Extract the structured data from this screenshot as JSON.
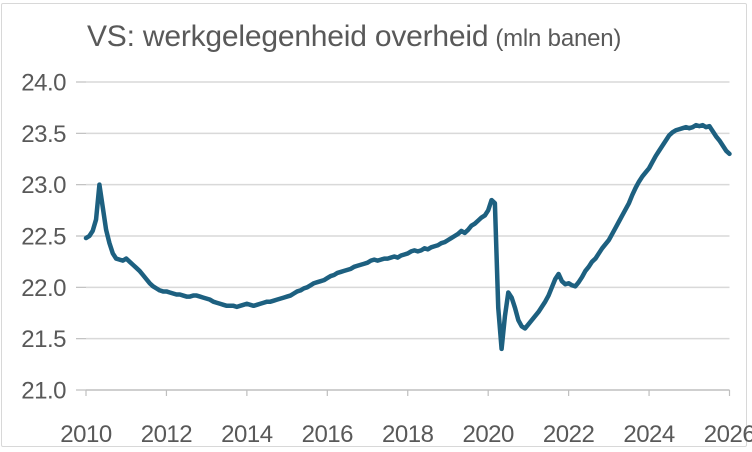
{
  "page": {
    "background": "#ffffff",
    "card_border_color": "#d8d8d8"
  },
  "chart_data": {
    "type": "line",
    "title": "VS: werkgelegenheid overheid",
    "subtitle": "(mln banen)",
    "xlabel": "",
    "ylabel": "",
    "xlim": [
      2010,
      2026
    ],
    "ylim": [
      21.0,
      24.0
    ],
    "x_ticks": [
      2010,
      2012,
      2014,
      2016,
      2018,
      2020,
      2022,
      2024,
      2026
    ],
    "y_ticks": [
      21.0,
      21.5,
      22.0,
      22.5,
      23.0,
      23.5,
      24.0
    ],
    "grid": "horizontal-only",
    "legend": "none",
    "colors": {
      "line": "#1d6080",
      "gridline": "#d9d9d9",
      "axis": "#bfbfbf",
      "text": "#595959"
    },
    "series": [
      {
        "name": "VS werkgelegenheid overheid",
        "color": "#1d6080",
        "frequency": "monthly",
        "start": "2010-01",
        "end": "2026-01",
        "values": [
          22.48,
          22.5,
          22.55,
          22.66,
          23.0,
          22.78,
          22.56,
          22.43,
          22.33,
          22.28,
          22.27,
          22.26,
          22.28,
          22.25,
          22.22,
          22.19,
          22.16,
          22.12,
          22.08,
          22.04,
          22.01,
          21.99,
          21.97,
          21.96,
          21.96,
          21.95,
          21.94,
          21.93,
          21.93,
          21.92,
          21.91,
          21.91,
          21.92,
          21.92,
          21.91,
          21.9,
          21.89,
          21.88,
          21.86,
          21.85,
          21.84,
          21.83,
          21.82,
          21.82,
          21.82,
          21.81,
          21.82,
          21.83,
          21.84,
          21.83,
          21.82,
          21.83,
          21.84,
          21.85,
          21.86,
          21.86,
          21.87,
          21.88,
          21.89,
          21.9,
          21.91,
          21.92,
          21.94,
          21.96,
          21.97,
          21.99,
          22.0,
          22.02,
          22.04,
          22.05,
          22.06,
          22.07,
          22.09,
          22.11,
          22.12,
          22.14,
          22.15,
          22.16,
          22.17,
          22.18,
          22.2,
          22.21,
          22.22,
          22.23,
          22.24,
          22.26,
          22.27,
          22.26,
          22.27,
          22.28,
          22.28,
          22.29,
          22.3,
          22.29,
          22.31,
          22.32,
          22.33,
          22.35,
          22.36,
          22.35,
          22.36,
          22.38,
          22.37,
          22.39,
          22.4,
          22.41,
          22.43,
          22.44,
          22.46,
          22.48,
          22.5,
          22.52,
          22.55,
          22.53,
          22.56,
          22.6,
          22.62,
          22.65,
          22.68,
          22.7,
          22.75,
          22.85,
          22.82,
          21.8,
          21.4,
          21.72,
          21.95,
          21.9,
          21.8,
          21.68,
          21.62,
          21.6,
          21.64,
          21.68,
          21.72,
          21.76,
          21.81,
          21.86,
          21.92,
          22.0,
          22.08,
          22.13,
          22.06,
          22.03,
          22.04,
          22.02,
          22.01,
          22.05,
          22.1,
          22.16,
          22.2,
          22.25,
          22.28,
          22.33,
          22.38,
          22.42,
          22.46,
          22.52,
          22.58,
          22.64,
          22.7,
          22.76,
          22.82,
          22.9,
          22.97,
          23.03,
          23.08,
          23.12,
          23.16,
          23.22,
          23.28,
          23.33,
          23.38,
          23.43,
          23.48,
          23.51,
          23.53,
          23.54,
          23.55,
          23.56,
          23.55,
          23.56,
          23.58,
          23.57,
          23.58,
          23.56,
          23.57,
          23.52,
          23.47,
          23.43,
          23.38,
          23.33,
          23.3
        ]
      }
    ]
  }
}
